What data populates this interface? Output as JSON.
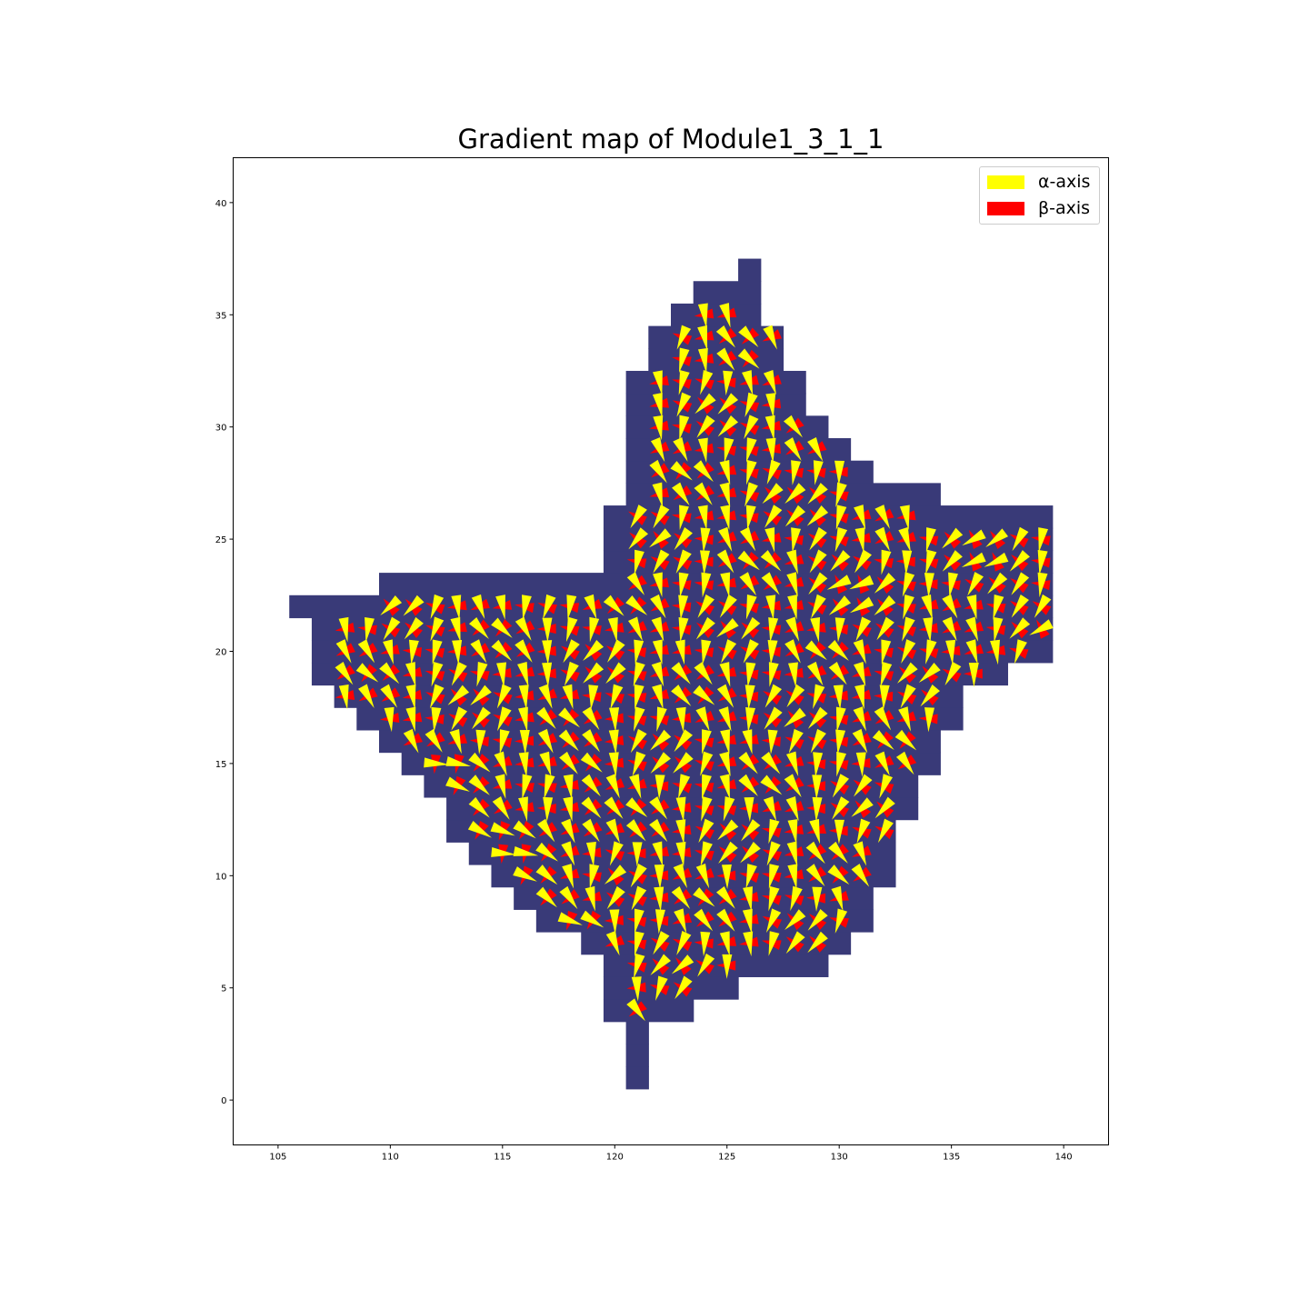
{
  "chart_data": {
    "type": "quiver",
    "title": "Gradient map of Module1_3_1_1",
    "xlabel": "",
    "ylabel": "",
    "xlim": [
      103,
      142
    ],
    "ylim": [
      -2,
      42
    ],
    "xticks": [
      105,
      110,
      115,
      120,
      125,
      130,
      135,
      140
    ],
    "yticks": [
      0,
      5,
      10,
      15,
      20,
      25,
      30,
      35,
      40
    ],
    "grid": false,
    "legend_position": "top-right",
    "region_color": "#393a78",
    "legend": [
      {
        "label": "α-axis",
        "color": "#ffff00"
      },
      {
        "label": "β-axis",
        "color": "#ff0000"
      }
    ],
    "region_row_extents": [
      {
        "y": 1,
        "x_min": 121,
        "x_max": 121
      },
      {
        "y": 2,
        "x_min": 121,
        "x_max": 121
      },
      {
        "y": 3,
        "x_min": 121,
        "x_max": 121
      },
      {
        "y": 4,
        "x_min": 120,
        "x_max": 123
      },
      {
        "y": 5,
        "x_min": 120,
        "x_max": 125
      },
      {
        "y": 6,
        "x_min": 120,
        "x_max": 129
      },
      {
        "y": 7,
        "x_min": 119,
        "x_max": 130
      },
      {
        "y": 8,
        "x_min": 117,
        "x_max": 131
      },
      {
        "y": 9,
        "x_min": 116,
        "x_max": 131
      },
      {
        "y": 10,
        "x_min": 115,
        "x_max": 132
      },
      {
        "y": 11,
        "x_min": 114,
        "x_max": 132
      },
      {
        "y": 12,
        "x_min": 113,
        "x_max": 132
      },
      {
        "y": 13,
        "x_min": 113,
        "x_max": 133
      },
      {
        "y": 14,
        "x_min": 112,
        "x_max": 133
      },
      {
        "y": 15,
        "x_min": 111,
        "x_max": 134
      },
      {
        "y": 16,
        "x_min": 110,
        "x_max": 134
      },
      {
        "y": 17,
        "x_min": 109,
        "x_max": 135
      },
      {
        "y": 18,
        "x_min": 108,
        "x_max": 135
      },
      {
        "y": 19,
        "x_min": 107,
        "x_max": 137
      },
      {
        "y": 20,
        "x_min": 107,
        "x_max": 139
      },
      {
        "y": 21,
        "x_min": 107,
        "x_max": 139
      },
      {
        "y": 22,
        "x_min": 106,
        "x_max": 139
      },
      {
        "y": 23,
        "x_min": 110,
        "x_max": 139
      },
      {
        "y": 24,
        "x_min": 120,
        "x_max": 139
      },
      {
        "y": 25,
        "x_min": 120,
        "x_max": 139
      },
      {
        "y": 26,
        "x_min": 120,
        "x_max": 139
      },
      {
        "y": 27,
        "x_min": 121,
        "x_max": 134
      },
      {
        "y": 28,
        "x_min": 121,
        "x_max": 131
      },
      {
        "y": 29,
        "x_min": 121,
        "x_max": 130
      },
      {
        "y": 30,
        "x_min": 121,
        "x_max": 129
      },
      {
        "y": 31,
        "x_min": 121,
        "x_max": 128
      },
      {
        "y": 32,
        "x_min": 121,
        "x_max": 128
      },
      {
        "y": 33,
        "x_min": 122,
        "x_max": 127
      },
      {
        "y": 34,
        "x_min": 122,
        "x_max": 127
      },
      {
        "y": 35,
        "x_min": 123,
        "x_max": 126
      },
      {
        "y": 36,
        "x_min": 124,
        "x_max": 126
      },
      {
        "y": 37,
        "x_min": 126,
        "x_max": 126
      }
    ],
    "arrow_row_extents": [
      {
        "y": 4,
        "x_min": 121,
        "x_max": 121
      },
      {
        "y": 5,
        "x_min": 121,
        "x_max": 123
      },
      {
        "y": 6,
        "x_min": 121,
        "x_max": 125
      },
      {
        "y": 7,
        "x_min": 120,
        "x_max": 129
      },
      {
        "y": 8,
        "x_min": 118,
        "x_max": 130
      },
      {
        "y": 9,
        "x_min": 117,
        "x_max": 130
      },
      {
        "y": 10,
        "x_min": 116,
        "x_max": 131
      },
      {
        "y": 11,
        "x_min": 115,
        "x_max": 131
      },
      {
        "y": 12,
        "x_min": 114,
        "x_max": 132
      },
      {
        "y": 13,
        "x_min": 114,
        "x_max": 132
      },
      {
        "y": 14,
        "x_min": 113,
        "x_max": 132
      },
      {
        "y": 15,
        "x_min": 112,
        "x_max": 133
      },
      {
        "y": 16,
        "x_min": 111,
        "x_max": 133
      },
      {
        "y": 17,
        "x_min": 110,
        "x_max": 134
      },
      {
        "y": 18,
        "x_min": 108,
        "x_max": 134
      },
      {
        "y": 19,
        "x_min": 108,
        "x_max": 136
      },
      {
        "y": 20,
        "x_min": 108,
        "x_max": 138
      },
      {
        "y": 21,
        "x_min": 108,
        "x_max": 139
      },
      {
        "y": 22,
        "x_min": 110,
        "x_max": 139
      },
      {
        "y": 23,
        "x_min": 121,
        "x_max": 139
      },
      {
        "y": 24,
        "x_min": 121,
        "x_max": 139
      },
      {
        "y": 25,
        "x_min": 121,
        "x_max": 139
      },
      {
        "y": 26,
        "x_min": 121,
        "x_max": 133
      },
      {
        "y": 27,
        "x_min": 122,
        "x_max": 130
      },
      {
        "y": 28,
        "x_min": 122,
        "x_max": 130
      },
      {
        "y": 29,
        "x_min": 122,
        "x_max": 129
      },
      {
        "y": 30,
        "x_min": 122,
        "x_max": 128
      },
      {
        "y": 31,
        "x_min": 122,
        "x_max": 127
      },
      {
        "y": 32,
        "x_min": 122,
        "x_max": 127
      },
      {
        "y": 33,
        "x_min": 123,
        "x_max": 126
      },
      {
        "y": 34,
        "x_min": 123,
        "x_max": 127
      },
      {
        "y": 35,
        "x_min": 124,
        "x_max": 125
      }
    ]
  }
}
